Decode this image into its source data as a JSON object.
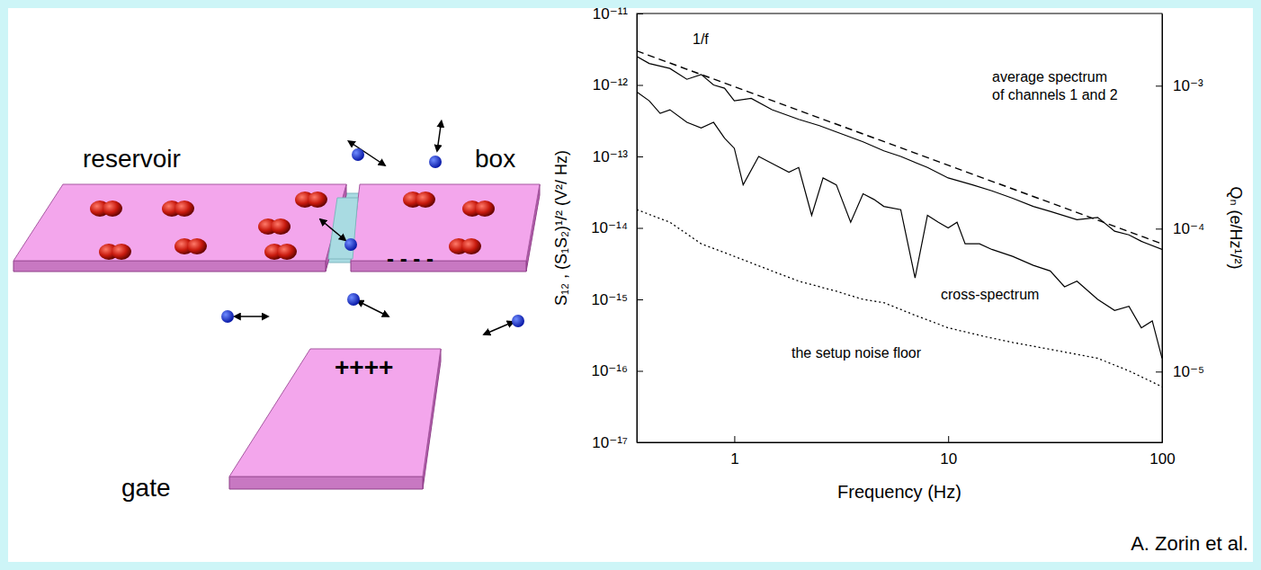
{
  "chart_data": {
    "type": "line",
    "log": true,
    "grid": false,
    "x_label": "Frequency (Hz)",
    "y_label": "S₁₂ , (S₁S₂)¹/² (V²/ Hz)",
    "y2_label": "Qₙ (e/Hz¹/²)",
    "xlim": [
      0.35,
      100
    ],
    "xticks": [
      1,
      10,
      100
    ],
    "ylim": [
      1e-17,
      1e-11
    ],
    "yticks": [
      {
        "value": 1e-17,
        "label": "10⁻¹⁷"
      },
      {
        "value": 1e-16,
        "label": "10⁻¹⁶"
      },
      {
        "value": 1e-15,
        "label": "10⁻¹⁵"
      },
      {
        "value": 1e-14,
        "label": "10⁻¹⁴"
      },
      {
        "value": 1e-13,
        "label": "10⁻¹³"
      },
      {
        "value": 1e-12,
        "label": "10⁻¹²"
      },
      {
        "value": 1e-11,
        "label": "10⁻¹¹"
      }
    ],
    "y2lim": [
      3.2e-06,
      0.0032
    ],
    "y2ticks": [
      {
        "value": 1e-05,
        "label": "10⁻⁵"
      },
      {
        "value": 0.0001,
        "label": "10⁻⁴"
      },
      {
        "value": 0.001,
        "label": "10⁻³"
      }
    ],
    "series": [
      {
        "color": "#000000",
        "line_style": "dashed",
        "x": [
          0.35,
          100
        ],
        "values": [
          3e-12,
          6e-15
        ]
      },
      {
        "color": "#000000",
        "line_style": "solid",
        "x": [
          0.35,
          0.4,
          0.5,
          0.6,
          0.7,
          0.8,
          0.9,
          1,
          1.2,
          1.5,
          2,
          2.5,
          3,
          4,
          5,
          6,
          8,
          10,
          13,
          16,
          20,
          25,
          30,
          40,
          50,
          60,
          70,
          80,
          100
        ],
        "values": [
          2.5e-12,
          2e-12,
          1.7e-12,
          1.2e-12,
          1.4e-12,
          1e-12,
          9e-13,
          6e-13,
          6.5e-13,
          4.5e-13,
          3.3e-13,
          2.7e-13,
          2.2e-13,
          1.6e-13,
          1.2e-13,
          1e-13,
          7e-14,
          5e-14,
          4e-14,
          3.3e-14,
          2.6e-14,
          2e-14,
          1.7e-14,
          1.3e-14,
          1.4e-14,
          9e-15,
          8e-15,
          6.5e-15,
          5e-15
        ]
      },
      {
        "color": "#000000",
        "line_style": "solid",
        "x": [
          0.35,
          0.4,
          0.45,
          0.5,
          0.6,
          0.7,
          0.8,
          0.9,
          1,
          1.1,
          1.3,
          1.5,
          1.8,
          2,
          2.3,
          2.6,
          3,
          3.5,
          4,
          4.5,
          5,
          6,
          7,
          8,
          9,
          10,
          11,
          12,
          14,
          16,
          20,
          25,
          30,
          35,
          40,
          50,
          60,
          70,
          80,
          90,
          100
        ],
        "values": [
          8e-13,
          6e-13,
          4e-13,
          4.5e-13,
          3e-13,
          2.5e-13,
          3e-13,
          1.8e-13,
          1.3e-13,
          4e-14,
          1e-13,
          8e-14,
          6e-14,
          7e-14,
          1.5e-14,
          5e-14,
          4e-14,
          1.2e-14,
          3e-14,
          2.5e-14,
          2e-14,
          1.8e-14,
          2e-15,
          1.5e-14,
          1.2e-14,
          1e-14,
          1.2e-14,
          6e-15,
          6e-15,
          5e-15,
          4e-15,
          3e-15,
          2.5e-15,
          1.5e-15,
          1.8e-15,
          1e-15,
          7e-16,
          8e-16,
          4e-16,
          5e-16,
          1.5e-16
        ]
      },
      {
        "color": "#000000",
        "line_style": "dotted",
        "x": [
          0.35,
          0.5,
          0.7,
          1,
          1.5,
          2,
          3,
          4,
          5,
          7,
          10,
          15,
          20,
          30,
          50,
          70,
          100
        ],
        "values": [
          1.8e-14,
          1.2e-14,
          6e-15,
          4e-15,
          2.5e-15,
          1.8e-15,
          1.3e-15,
          1e-15,
          9e-16,
          6e-16,
          4e-16,
          3e-16,
          2.5e-16,
          2e-16,
          1.5e-16,
          1e-16,
          6e-17
        ]
      }
    ],
    "annotations": [
      {
        "text": "1/f"
      },
      {
        "lines": [
          "average spectrum",
          "of channels 1 and 2"
        ]
      },
      {
        "text": "cross-spectrum"
      },
      {
        "text": "the setup noise floor"
      }
    ]
  },
  "diagram": {
    "reservoir": {
      "label": "reservoir"
    },
    "box": {
      "label": "box",
      "charge": "- - - -"
    },
    "gate": {
      "label": "gate",
      "charge": "++++"
    }
  },
  "credit": "A. Zorin et al."
}
